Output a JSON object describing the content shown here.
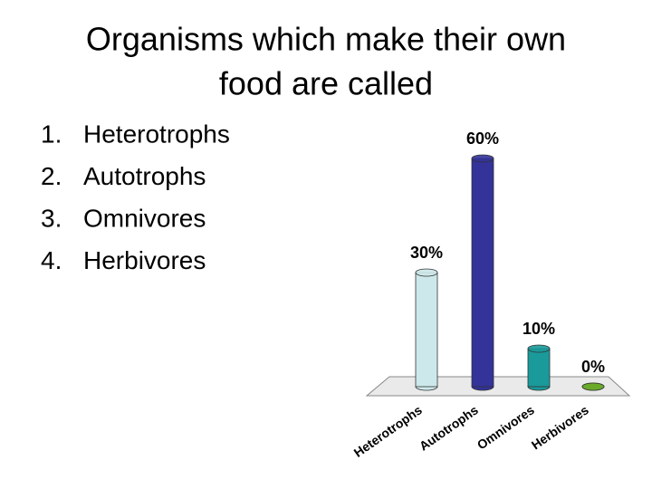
{
  "header": {
    "title_lines": [
      "Organisms which make their own",
      "food are called"
    ]
  },
  "list": [
    {
      "number": "1.",
      "text": "Heterotrophs"
    },
    {
      "number": "2.",
      "text": "Autotrophs"
    },
    {
      "number": "3.",
      "text": "Omnivores"
    },
    {
      "number": "4.",
      "text": "Herbivores"
    }
  ],
  "chart_data": {
    "type": "bar",
    "categories": [
      "Heterotrophs",
      "Autotrophs",
      "Omnivores",
      "Herbivores"
    ],
    "values": [
      30,
      60,
      10,
      0
    ],
    "value_labels": [
      "30%",
      "60%",
      "10%",
      "0%"
    ],
    "colors": [
      "#cde8ea",
      "#333399",
      "#1a9a9a",
      "#6aaa2a"
    ]
  }
}
